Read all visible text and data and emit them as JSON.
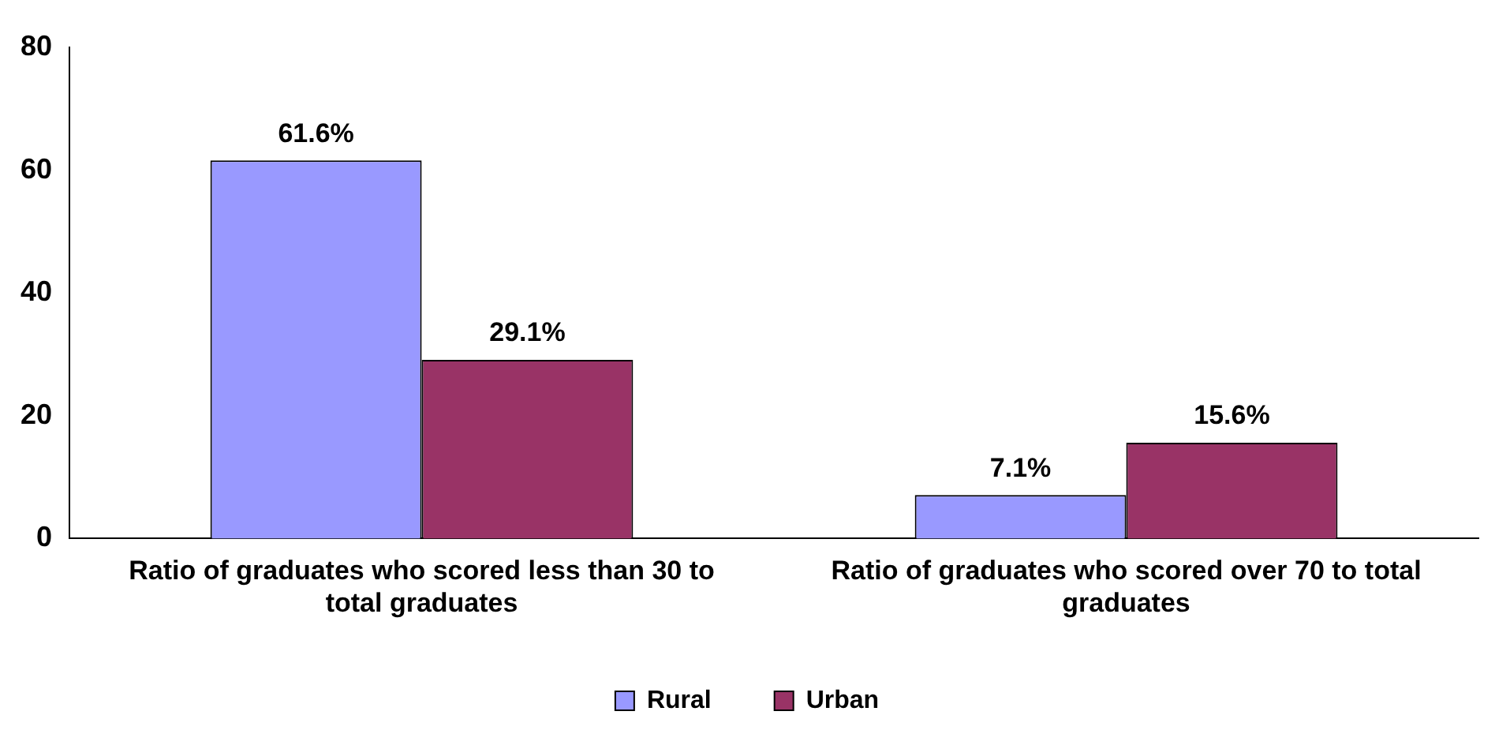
{
  "chart_data": {
    "type": "bar",
    "categories": [
      "Ratio of graduates who scored less than 30 to total graduates",
      "Ratio of graduates who scored over 70 to total graduates"
    ],
    "series": [
      {
        "name": "Rural",
        "color": "#9999ff",
        "values": [
          61.6,
          7.1
        ],
        "value_labels": [
          "61.6%",
          "7.1%"
        ]
      },
      {
        "name": "Urban",
        "color": "#993366",
        "values": [
          29.1,
          15.6
        ],
        "value_labels": [
          "29.1%",
          "15.6%"
        ]
      }
    ],
    "ylim": [
      0,
      80
    ],
    "yticks": [
      0,
      20,
      40,
      60,
      80
    ],
    "grid": false,
    "legend": "bottom"
  }
}
